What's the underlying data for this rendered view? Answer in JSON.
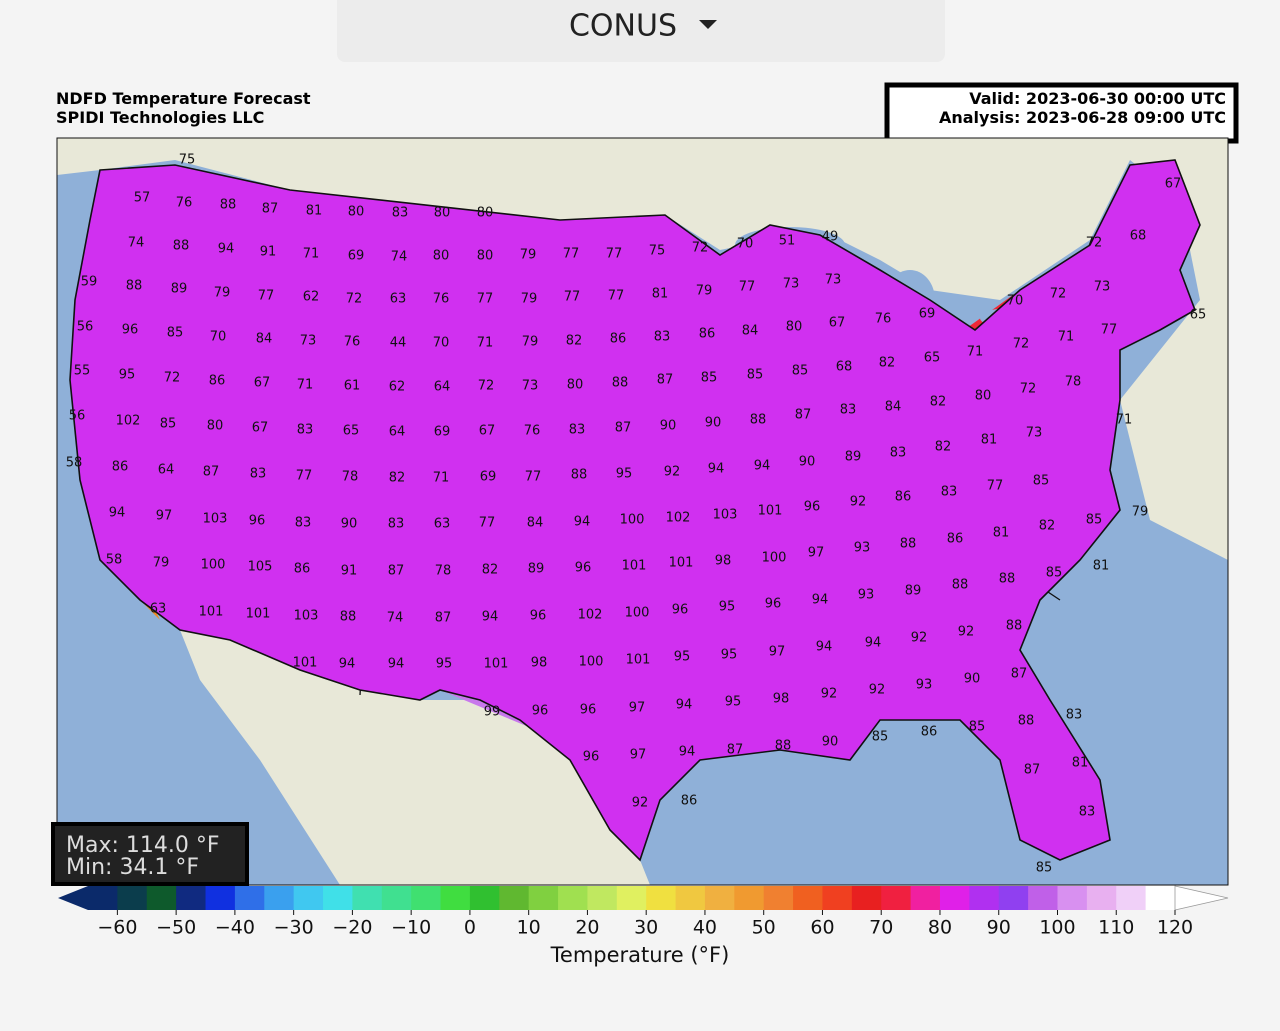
{
  "dropdown": {
    "label": "CONUS"
  },
  "header": {
    "title": "NDFD Temperature Forecast",
    "subtitle": "SPIDI Technologies LLC",
    "valid": "Valid: 2023-06-30 00:00 UTC",
    "analysis": "Analysis: 2023-06-28 09:00 UTC"
  },
  "map": {
    "labels": [
      75,
      57,
      76,
      88,
      87,
      81,
      80,
      83,
      80,
      80,
      74,
      88,
      94,
      91,
      71,
      69,
      74,
      80,
      80,
      79,
      77,
      77,
      75,
      72,
      70,
      51,
      49,
      59,
      88,
      89,
      79,
      77,
      62,
      72,
      63,
      76,
      77,
      79,
      77,
      77,
      81,
      79,
      77,
      73,
      73,
      70,
      72,
      73,
      72,
      68,
      67,
      65,
      56,
      96,
      85,
      70,
      84,
      73,
      76,
      44,
      70,
      71,
      79,
      82,
      86,
      83,
      86,
      84,
      80,
      67,
      76,
      69,
      72,
      71,
      77,
      55,
      95,
      72,
      86,
      67,
      71,
      61,
      62,
      64,
      72,
      73,
      80,
      88,
      87,
      85,
      85,
      85,
      68,
      82,
      65,
      71,
      78,
      56,
      102,
      85,
      80,
      67,
      83,
      65,
      64,
      69,
      67,
      76,
      83,
      87,
      90,
      90,
      88,
      87,
      83,
      84,
      82,
      80,
      72,
      71,
      58,
      86,
      64,
      87,
      83,
      77,
      78,
      82,
      71,
      69,
      77,
      88,
      95,
      92,
      94,
      94,
      90,
      89,
      83,
      82,
      81,
      73,
      94,
      97,
      103,
      96,
      83,
      90,
      83,
      63,
      77,
      84,
      94,
      100,
      102,
      103,
      101,
      96,
      92,
      86,
      83,
      77,
      85,
      58,
      79,
      100,
      105,
      86,
      91,
      87,
      78,
      82,
      89,
      96,
      101,
      101,
      98,
      100,
      97,
      93,
      88,
      86,
      81,
      82,
      85,
      79,
      63,
      101,
      101,
      103,
      88,
      74,
      87,
      94,
      96,
      102,
      100,
      96,
      95,
      96,
      94,
      93,
      89,
      88,
      88,
      85,
      81,
      101,
      94,
      94,
      95,
      101,
      98,
      100,
      101,
      95,
      95,
      97,
      94,
      94,
      92,
      92,
      88,
      99,
      96,
      96,
      97,
      94,
      95,
      98,
      92,
      92,
      93,
      90,
      87,
      96,
      97,
      94,
      87,
      88,
      90,
      85,
      86,
      85,
      88,
      83,
      92,
      86,
      87,
      81,
      83,
      85
    ],
    "max_text": "Max: 114.0 °F",
    "min_text": "Min: 34.1 °F"
  },
  "colorbar": {
    "label": "Temperature (°F)",
    "xlim": [
      -65,
      120
    ],
    "bin": 5,
    "colors": [
      "#0b2a6a",
      "#0b3d4c",
      "#0e5a2c",
      "#102a80",
      "#1030e0",
      "#2f6fe8",
      "#3aa0ee",
      "#40c8f0",
      "#40e0e8",
      "#40e0b0",
      "#40e090",
      "#40e070",
      "#40dd40",
      "#30c030",
      "#60b830",
      "#80d040",
      "#a0e050",
      "#c0e860",
      "#e0f060",
      "#f0e040",
      "#f0c840",
      "#f0b040",
      "#f09a30",
      "#f08030",
      "#f06020",
      "#f04020",
      "#e82020",
      "#f02040",
      "#f020a0",
      "#e020e8",
      "#b030f0",
      "#9040f0",
      "#c060e8",
      "#d890f0",
      "#e8b0f0",
      "#f0d0f8",
      "#ffffff"
    ],
    "ticks": [
      {
        "value": -60,
        "label": "−60"
      },
      {
        "value": -50,
        "label": "−50"
      },
      {
        "value": -40,
        "label": "−40"
      },
      {
        "value": -30,
        "label": "−30"
      },
      {
        "value": -20,
        "label": "−20"
      },
      {
        "value": -10,
        "label": "−10"
      },
      0,
      10,
      20,
      30,
      40,
      50,
      60,
      70,
      80,
      90,
      100,
      110,
      120
    ]
  }
}
